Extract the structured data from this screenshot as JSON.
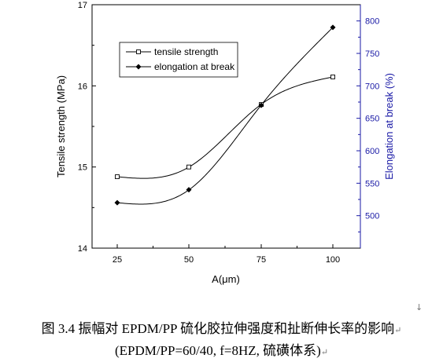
{
  "chart_data": {
    "type": "line",
    "categories": [
      "25",
      "50",
      "75",
      "100"
    ],
    "x": [
      25,
      50,
      75,
      100
    ],
    "xlabel": "A(μm)",
    "ylabel": "Tensile strength  (MPa)",
    "ylabel_right": "Elongation at break (%)",
    "ylim": [
      14,
      17
    ],
    "ylim_right": [
      450,
      825
    ],
    "yticks": [
      "14",
      "15",
      "16",
      "17"
    ],
    "yticks_right": [
      "500",
      "550",
      "600",
      "650",
      "700",
      "750",
      "800"
    ],
    "legend_position": "top-left",
    "grid": false,
    "series": [
      {
        "name": "tensile strength",
        "axis": "left",
        "marker": "open-square",
        "values": [
          14.88,
          15.0,
          15.77,
          16.11
        ]
      },
      {
        "name": "elongation at break",
        "axis": "right",
        "marker": "filled-diamond",
        "values": [
          520,
          540,
          670,
          790
        ]
      }
    ],
    "colors": {
      "axis_left": "#000000",
      "axis_right": "#1a1aa6",
      "line": "#000000"
    }
  },
  "caption": {
    "line1": "图 3.4  振幅对 EPDM/PP 硫化胶拉伸强度和扯断伸长率的影响",
    "line2": "(EPDM/PP=60/40, f=8HZ,  硫磺体系)"
  },
  "marks": {
    "arrow": "↓",
    "return1": "↵",
    "return2": "↵"
  }
}
